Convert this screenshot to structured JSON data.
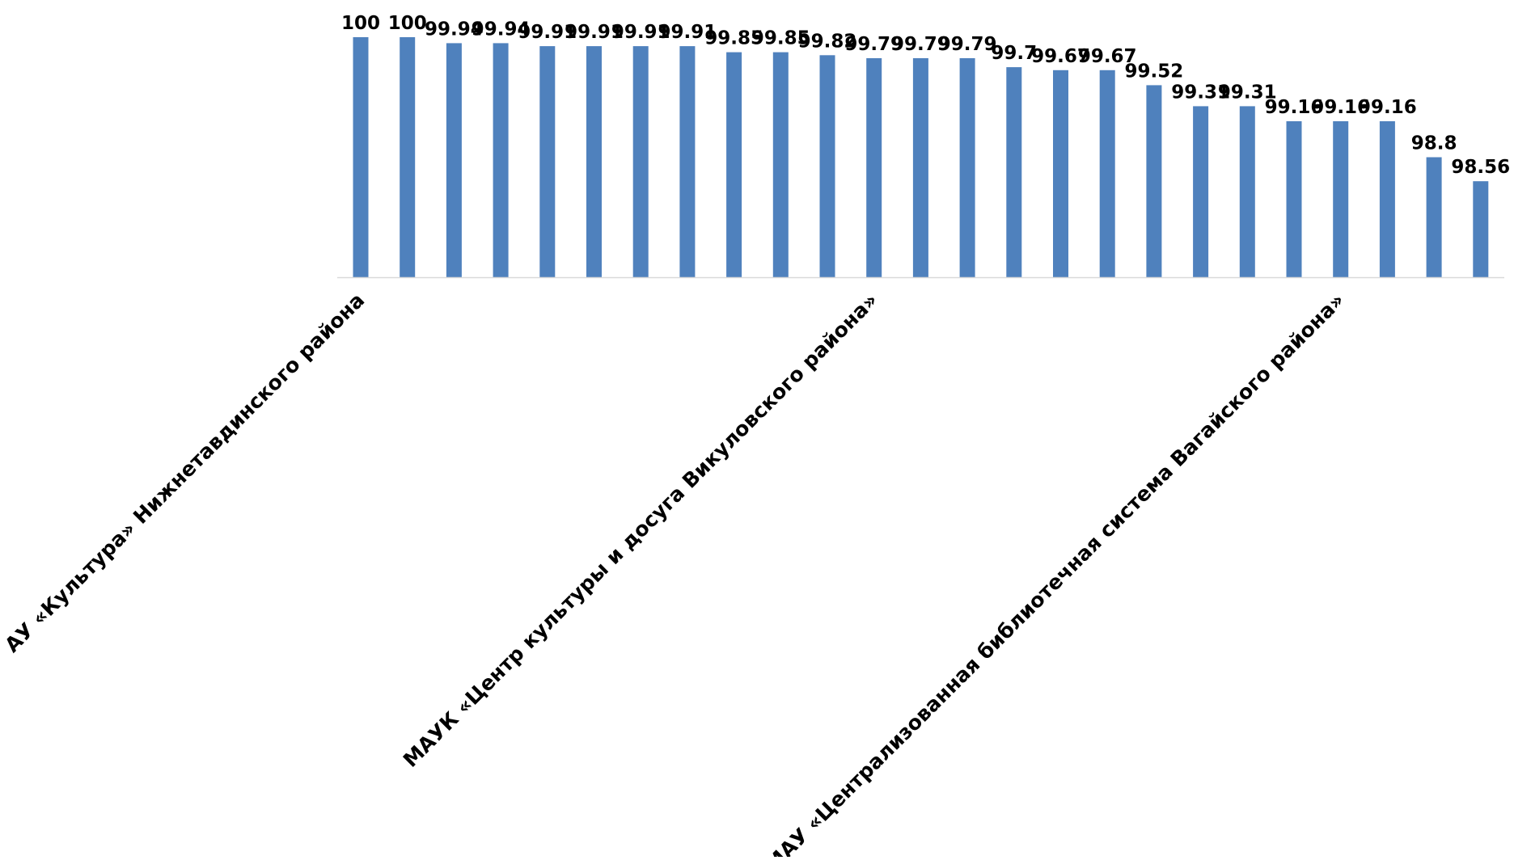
{
  "chart_data": {
    "type": "bar",
    "title": "",
    "xlabel": "",
    "ylabel": "",
    "grid": false,
    "legend": "none",
    "bar_color": "#4F81BD",
    "axis_color": "#D9D9D9",
    "ylim": [
      97.6,
      100
    ],
    "categories": [
      "АУ «Культура» Нижнетавдинского района",
      "",
      "",
      "",
      "",
      "",
      "",
      "",
      "",
      "",
      "",
      "МАУК «Центр культуры и досуга Викуловского района»",
      "",
      "",
      "",
      "",
      "",
      "",
      "",
      "",
      "",
      "МАУ «Централизованная библиотечная система Вагайского района»",
      "",
      "",
      ""
    ],
    "values": [
      100,
      100,
      99.94,
      99.94,
      99.91,
      99.91,
      99.91,
      99.91,
      99.85,
      99.85,
      99.82,
      99.79,
      99.79,
      99.79,
      99.7,
      99.67,
      99.67,
      99.52,
      99.31,
      99.31,
      99.16,
      99.16,
      99.16,
      98.8,
      98.56
    ],
    "data_labels": [
      "100",
      "100",
      "99.94",
      "99.94",
      "99.91",
      "99.91",
      "99.91",
      "99.91",
      "99.85",
      "99.85",
      "99.82",
      "99.79",
      "99.79",
      "99.79",
      "99.7",
      "99.67",
      "99.67",
      "99.52",
      "99.31",
      "99.31",
      "99.16",
      "99.16",
      "99.16",
      "98.8",
      "98.56"
    ]
  }
}
